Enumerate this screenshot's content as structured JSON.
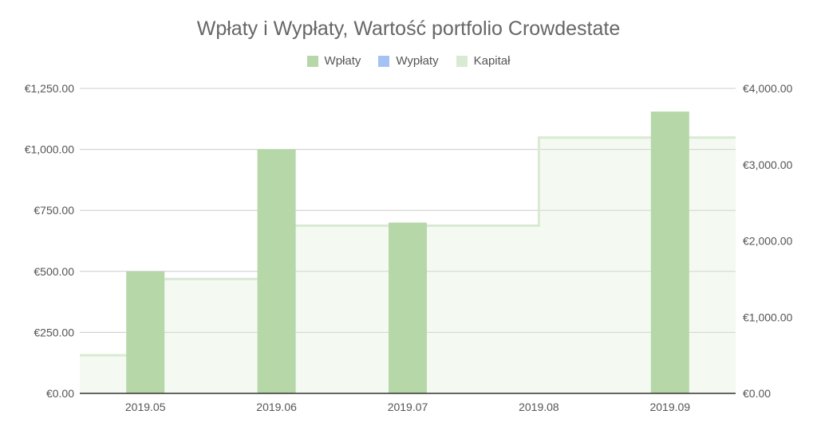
{
  "chart_data": {
    "type": "bar",
    "title": "Wpłaty i Wypłaty, Wartość portfolio  Crowdestate",
    "categories": [
      "2019.05",
      "2019.06",
      "2019.07",
      "2019.08",
      "2019.09"
    ],
    "series": [
      {
        "name": "Wpłaty",
        "axis": "left",
        "kind": "bar",
        "color": "#b6d7a8",
        "values": [
          500,
          1000,
          700,
          0,
          1155
        ]
      },
      {
        "name": "Wypłaty",
        "axis": "left",
        "kind": "bar",
        "color": "#a4c2f4",
        "values": [
          0,
          0,
          0,
          0,
          0
        ]
      },
      {
        "name": "Kapitał",
        "axis": "right",
        "kind": "stepped-area",
        "color": "#d9ead3",
        "values": [
          500,
          1500,
          2200,
          2200,
          3355
        ]
      }
    ],
    "left_axis": {
      "min": 0,
      "max": 1250,
      "ticks": [
        0,
        250,
        500,
        750,
        1000,
        1250
      ],
      "tick_labels": [
        "€0.00",
        "€250.00",
        "€500.00",
        "€750.00",
        "€1,000.00",
        "€1,250.00"
      ]
    },
    "right_axis": {
      "min": 0,
      "max": 4000,
      "ticks": [
        0,
        1000,
        2000,
        3000,
        4000
      ],
      "tick_labels": [
        "€0.00",
        "€1,000.00",
        "€2,000.00",
        "€3,000.00",
        "€4,000.00"
      ]
    },
    "legend_position": "top",
    "grid": true
  }
}
